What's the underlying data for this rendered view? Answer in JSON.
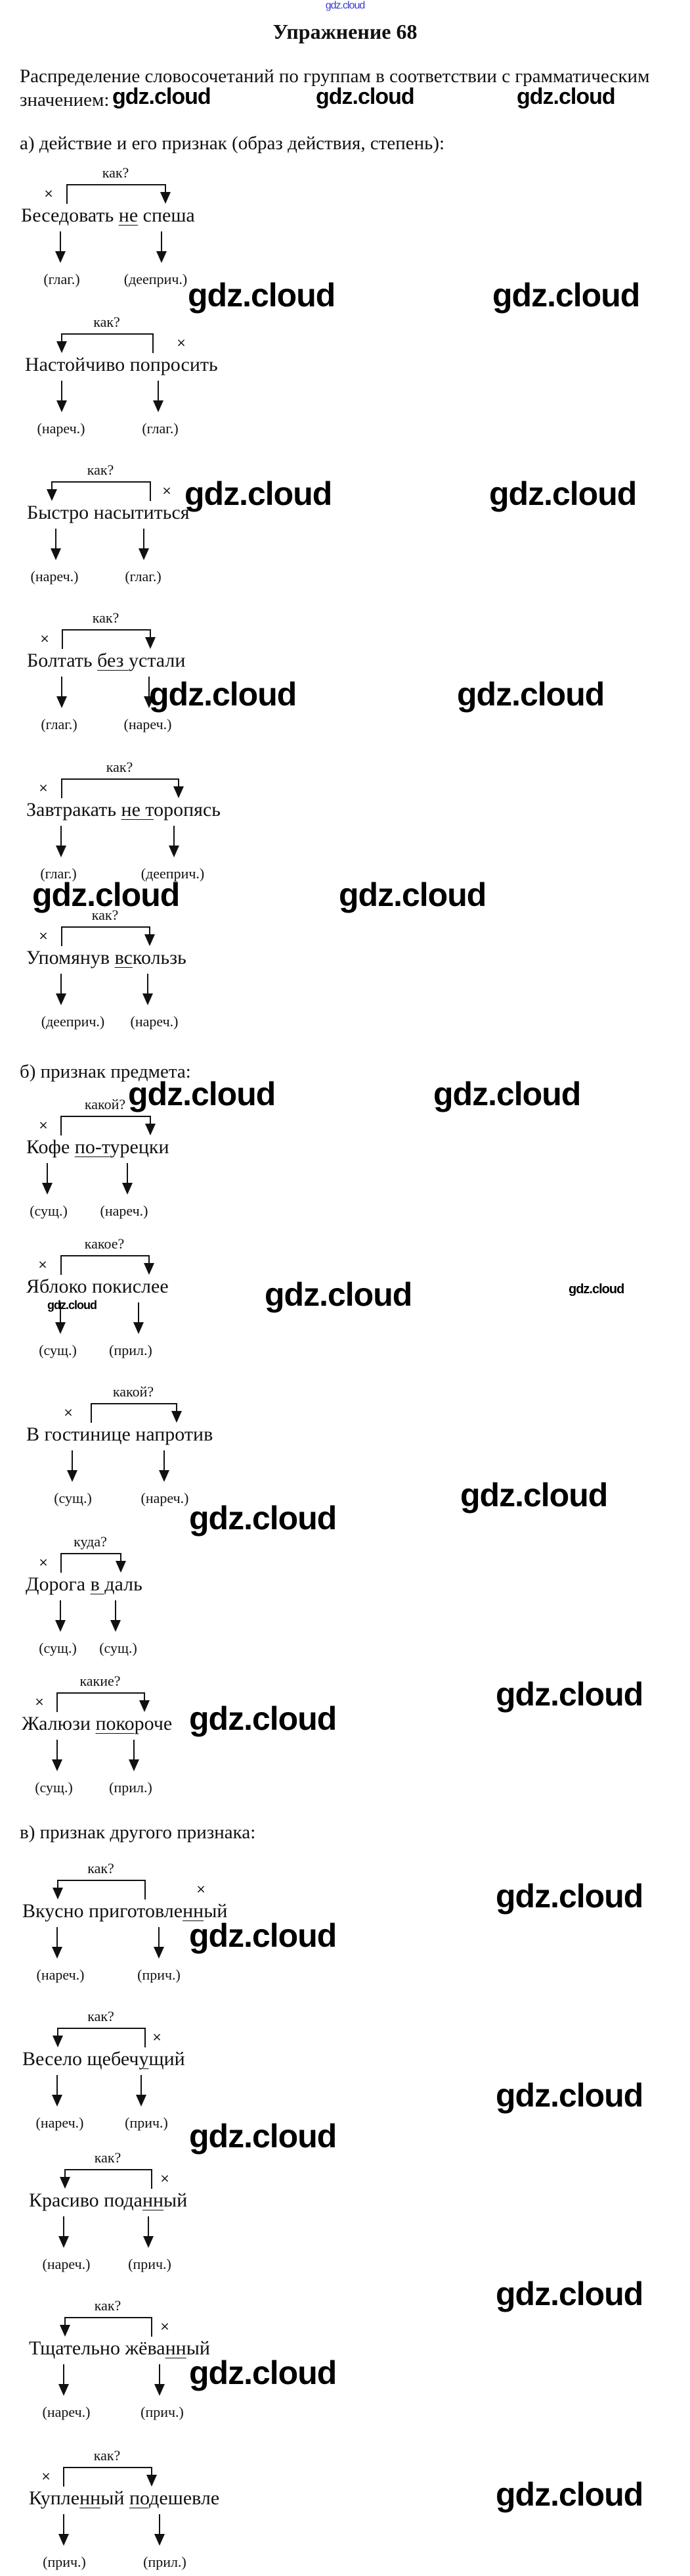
{
  "top_link": "gdz.cloud",
  "title": "Упражнение 68",
  "intro": "Распределение словосочетаний по группам в соответствии с грамматическим значением:",
  "watermark": "gdz.cloud",
  "sections": [
    {
      "heading": "а) действие и его признак (образ действия, степень):"
    },
    {
      "heading": "б) признак предмета:"
    },
    {
      "heading": "в) признак другого признака:"
    }
  ],
  "items": [
    {
      "question": "как?",
      "parts": [
        {
          "t": "Беседовать "
        },
        {
          "t": "не",
          "u": true
        },
        {
          "t": " спеша"
        }
      ],
      "labels": [
        "(глаг.)",
        "(дееприч.)"
      ]
    },
    {
      "question": "как?",
      "parts": [
        {
          "t": "Настойчиво попросить"
        }
      ],
      "labels": [
        "(нареч.)",
        "(глаг.)"
      ]
    },
    {
      "question": "как?",
      "parts": [
        {
          "t": "Быстро насытиться"
        }
      ],
      "labels": [
        "(нареч.)",
        "(глаг.)"
      ]
    },
    {
      "question": "как?",
      "parts": [
        {
          "t": "Болтать "
        },
        {
          "t": "без ",
          "u": true
        },
        {
          "t": "устали"
        }
      ],
      "labels": [
        "(глаг.)",
        "(нареч.)"
      ]
    },
    {
      "question": "как?",
      "parts": [
        {
          "t": "Завтракать "
        },
        {
          "t": "не т",
          "u": true
        },
        {
          "t": "оропясь"
        }
      ],
      "labels": [
        "(глаг.)",
        "(дееприч.)"
      ]
    },
    {
      "question": "как?",
      "parts": [
        {
          "t": "Упомянув "
        },
        {
          "t": "вс",
          "u": true
        },
        {
          "t": "кользь"
        }
      ],
      "labels": [
        "(дееприч.)",
        "(нареч.)"
      ]
    },
    {
      "question": "какой?",
      "parts": [
        {
          "t": "Кофе "
        },
        {
          "t": "по-т",
          "u": true
        },
        {
          "t": "урецки"
        }
      ],
      "labels": [
        "(сущ.)",
        "(нареч.)"
      ]
    },
    {
      "question": "какое?",
      "parts": [
        {
          "t": "Яблоко покислее"
        }
      ],
      "labels": [
        "(сущ.)",
        "(прил.)"
      ]
    },
    {
      "question": "какой?",
      "parts": [
        {
          "t": "В гостинице напротив"
        }
      ],
      "labels": [
        "(сущ.)",
        "(нареч.)"
      ]
    },
    {
      "question": "куда?",
      "parts": [
        {
          "t": "Дорога "
        },
        {
          "t": "в д",
          "u": true
        },
        {
          "t": "аль"
        }
      ],
      "labels": [
        "(сущ.)",
        "(сущ.)"
      ]
    },
    {
      "question": "какие?",
      "parts": [
        {
          "t": "Жалюзи "
        },
        {
          "t": "поко",
          "u": true
        },
        {
          "t": "роче"
        }
      ],
      "labels": [
        "(сущ.)",
        "(прил.)"
      ]
    },
    {
      "question": "как?",
      "parts": [
        {
          "t": "Вкусно приготовле"
        },
        {
          "t": "нн",
          "u": true
        },
        {
          "t": "ый"
        }
      ],
      "labels": [
        "(нареч.)",
        "(прич.)"
      ]
    },
    {
      "question": "как?",
      "parts": [
        {
          "t": "Весело щебеч"
        },
        {
          "t": "у",
          "u": true
        },
        {
          "t": "щий"
        }
      ],
      "labels": [
        "(нареч.)",
        "(прич.)"
      ]
    },
    {
      "question": "как?",
      "parts": [
        {
          "t": "Красиво пода"
        },
        {
          "t": "нн",
          "u": true
        },
        {
          "t": "ый"
        }
      ],
      "labels": [
        "(нареч.)",
        "(прич.)"
      ]
    },
    {
      "question": "как?",
      "parts": [
        {
          "t": "Тщательно жёва"
        },
        {
          "t": "нн",
          "u": true
        },
        {
          "t": "ый"
        }
      ],
      "labels": [
        "(нареч.)",
        "(прич.)"
      ]
    },
    {
      "question": "как?",
      "parts": [
        {
          "t": "Купле"
        },
        {
          "t": "нн",
          "u": true
        },
        {
          "t": "ый "
        },
        {
          "t": "под",
          "u": true
        },
        {
          "t": "ешевле"
        }
      ],
      "labels": [
        "(прич.)",
        "(прил.)"
      ]
    }
  ]
}
